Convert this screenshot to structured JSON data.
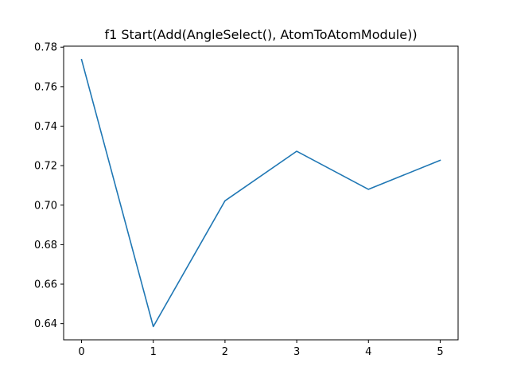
{
  "chart_data": {
    "type": "line",
    "title": "f1 Start(Add(AngleSelect(), AtomToAtomModule))",
    "xlabel": "",
    "ylabel": "",
    "x": [
      0,
      1,
      2,
      3,
      4,
      5
    ],
    "series": [
      {
        "values": [
          0.7737,
          0.6385,
          0.7022,
          0.7273,
          0.708,
          0.7227
        ],
        "color": "#1f77b4"
      }
    ],
    "xlim": [
      -0.25,
      5.25
    ],
    "ylim": [
      0.6318,
      0.7805
    ],
    "xticks": [
      0,
      1,
      2,
      3,
      4,
      5
    ],
    "xtick_labels": [
      "0",
      "1",
      "2",
      "3",
      "4",
      "5"
    ],
    "yticks": [
      0.64,
      0.66,
      0.68,
      0.7,
      0.72,
      0.74,
      0.76,
      0.78
    ],
    "ytick_labels": [
      "0.64",
      "0.66",
      "0.68",
      "0.70",
      "0.72",
      "0.74",
      "0.76",
      "0.78"
    ],
    "grid": false,
    "legend": "none"
  }
}
